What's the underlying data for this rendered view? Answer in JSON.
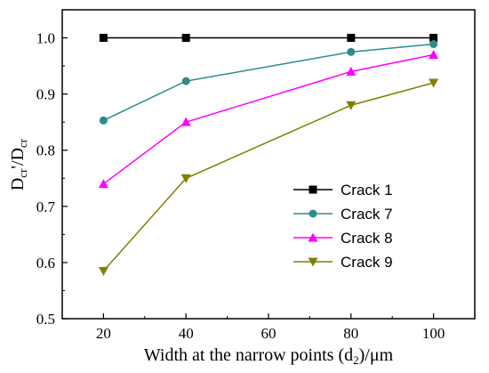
{
  "chart_data": {
    "type": "line",
    "x": [
      20,
      40,
      80,
      100
    ],
    "xlim": [
      10,
      110
    ],
    "ylim": [
      0.5,
      1.05
    ],
    "x_ticks": [
      20,
      40,
      60,
      80,
      100
    ],
    "y_ticks": [
      0.5,
      0.6,
      0.7,
      0.8,
      0.9,
      1.0
    ],
    "x_tick_labels": [
      "20",
      "40",
      "60",
      "80",
      "100"
    ],
    "y_tick_labels": [
      "0.5",
      "0.6",
      "0.7",
      "0.8",
      "0.9",
      "1.0"
    ],
    "xlabel": "Width at the narrow points (d",
    "xlabel_sub": "2",
    "xlabel_tail": ")/μm",
    "ylabel_base": "D",
    "ylabel_sub": "cr",
    "ylabel_mid": "'/D",
    "ylabel_sub2": "cr",
    "grid": false,
    "legend_position": "center-right",
    "series": [
      {
        "name": "Crack 1",
        "values": [
          1.0,
          1.0,
          1.0,
          1.0
        ],
        "color": "#000000",
        "marker": "square"
      },
      {
        "name": "Crack 7",
        "values": [
          0.853,
          0.923,
          0.975,
          0.989
        ],
        "color": "#2e8b8b",
        "marker": "circle"
      },
      {
        "name": "Crack 8",
        "values": [
          0.74,
          0.85,
          0.94,
          0.97
        ],
        "color": "#ff00ff",
        "marker": "triangle-up"
      },
      {
        "name": "Crack 9",
        "values": [
          0.585,
          0.75,
          0.88,
          0.92
        ],
        "color": "#808000",
        "marker": "triangle-down"
      }
    ]
  }
}
